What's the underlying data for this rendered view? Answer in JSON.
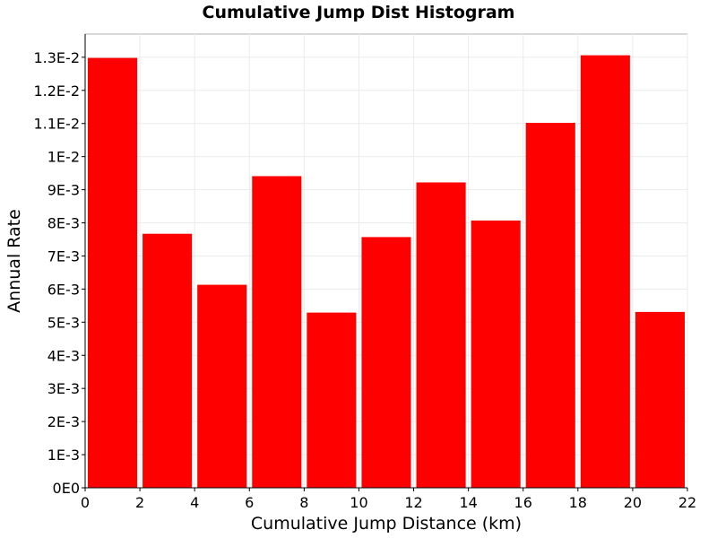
{
  "chart_data": {
    "type": "bar",
    "title": "Cumulative Jump Dist Histogram",
    "xlabel": "Cumulative Jump Distance (km)",
    "ylabel": "Annual Rate",
    "xlim": [
      0,
      22
    ],
    "ylim": [
      0,
      0.0137
    ],
    "grid": true,
    "x_ticks": [
      {
        "value": 0,
        "label": "0"
      },
      {
        "value": 2,
        "label": "2"
      },
      {
        "value": 4,
        "label": "4"
      },
      {
        "value": 6,
        "label": "6"
      },
      {
        "value": 8,
        "label": "8"
      },
      {
        "value": 10,
        "label": "10"
      },
      {
        "value": 12,
        "label": "12"
      },
      {
        "value": 14,
        "label": "14"
      },
      {
        "value": 16,
        "label": "16"
      },
      {
        "value": 18,
        "label": "18"
      },
      {
        "value": 20,
        "label": "20"
      },
      {
        "value": 22,
        "label": "22"
      }
    ],
    "y_ticks": [
      {
        "value": 0,
        "label": "0E0"
      },
      {
        "value": 0.001,
        "label": "1E-3"
      },
      {
        "value": 0.002,
        "label": "2E-3"
      },
      {
        "value": 0.003,
        "label": "3E-3"
      },
      {
        "value": 0.004,
        "label": "4E-3"
      },
      {
        "value": 0.005,
        "label": "5E-3"
      },
      {
        "value": 0.006,
        "label": "6E-3"
      },
      {
        "value": 0.007,
        "label": "7E-3"
      },
      {
        "value": 0.008,
        "label": "8E-3"
      },
      {
        "value": 0.009,
        "label": "9E-3"
      },
      {
        "value": 0.01,
        "label": "1E-2"
      },
      {
        "value": 0.011,
        "label": "1.1E-2"
      },
      {
        "value": 0.012,
        "label": "1.2E-2"
      },
      {
        "value": 0.013,
        "label": "1.3E-2"
      }
    ],
    "bars": [
      {
        "x0": 0,
        "x1": 2,
        "value": 0.01298
      },
      {
        "x0": 2,
        "x1": 4,
        "value": 0.00767
      },
      {
        "x0": 4,
        "x1": 6,
        "value": 0.00613
      },
      {
        "x0": 6,
        "x1": 8,
        "value": 0.00941
      },
      {
        "x0": 8,
        "x1": 10,
        "value": 0.00529
      },
      {
        "x0": 10,
        "x1": 12,
        "value": 0.00757
      },
      {
        "x0": 12,
        "x1": 14,
        "value": 0.00922
      },
      {
        "x0": 14,
        "x1": 16,
        "value": 0.00807
      },
      {
        "x0": 16,
        "x1": 18,
        "value": 0.01102
      },
      {
        "x0": 18,
        "x1": 20,
        "value": 0.01306
      },
      {
        "x0": 20,
        "x1": 22,
        "value": 0.00531
      }
    ],
    "colors": {
      "bar": "#ff0000"
    }
  }
}
